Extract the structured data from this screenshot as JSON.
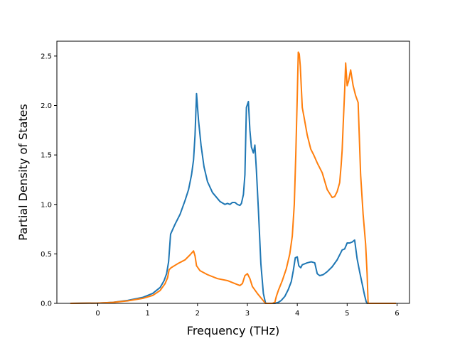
{
  "chart_data": {
    "type": "line",
    "title": "",
    "xlabel": "Frequency (THz)",
    "ylabel": "Partial Density of States",
    "xlim": [
      -0.82,
      6.25
    ],
    "ylim": [
      0,
      2.65
    ],
    "xticks": [
      0,
      1,
      2,
      3,
      4,
      5,
      6
    ],
    "yticks": [
      0.0,
      0.5,
      1.0,
      1.5,
      2.0,
      2.5
    ],
    "xtick_labels": [
      "0",
      "1",
      "2",
      "3",
      "4",
      "5",
      "6"
    ],
    "ytick_labels": [
      "0.0",
      "0.5",
      "1.0",
      "1.5",
      "2.0",
      "2.5"
    ],
    "grid": false,
    "legend": "none",
    "series": [
      {
        "color": "#1f77b4",
        "x": [
          -0.55,
          0.0,
          0.3,
          0.6,
          0.9,
          1.1,
          1.25,
          1.33,
          1.38,
          1.42,
          1.46,
          1.55,
          1.65,
          1.75,
          1.82,
          1.88,
          1.92,
          1.95,
          1.98,
          2.02,
          2.07,
          2.13,
          2.2,
          2.3,
          2.45,
          2.55,
          2.6,
          2.65,
          2.7,
          2.75,
          2.8,
          2.85,
          2.88,
          2.92,
          2.95,
          2.98,
          3.02,
          3.05,
          3.08,
          3.12,
          3.15,
          3.18,
          3.22,
          3.27,
          3.32,
          3.36,
          3.37,
          3.55,
          3.62,
          3.68,
          3.75,
          3.82,
          3.88,
          3.92,
          3.96,
          4.0,
          4.03,
          4.07,
          4.1,
          4.15,
          4.2,
          4.28,
          4.35,
          4.4,
          4.45,
          4.52,
          4.6,
          4.7,
          4.8,
          4.9,
          4.95,
          5.0,
          5.05,
          5.1,
          5.15,
          5.2,
          5.25,
          5.3,
          5.35,
          5.38,
          5.4,
          5.98
        ],
        "y": [
          0.0,
          0.003,
          0.01,
          0.03,
          0.06,
          0.1,
          0.16,
          0.23,
          0.3,
          0.42,
          0.7,
          0.8,
          0.9,
          1.04,
          1.15,
          1.3,
          1.45,
          1.7,
          2.12,
          1.85,
          1.6,
          1.38,
          1.23,
          1.12,
          1.03,
          1.0,
          1.01,
          1.0,
          1.02,
          1.02,
          1.0,
          0.99,
          1.01,
          1.1,
          1.3,
          1.98,
          2.04,
          1.75,
          1.58,
          1.52,
          1.6,
          1.35,
          0.95,
          0.4,
          0.1,
          0.01,
          0.0,
          0.0,
          0.01,
          0.03,
          0.07,
          0.14,
          0.22,
          0.33,
          0.46,
          0.47,
          0.38,
          0.36,
          0.39,
          0.4,
          0.41,
          0.42,
          0.41,
          0.3,
          0.28,
          0.29,
          0.32,
          0.37,
          0.44,
          0.54,
          0.55,
          0.61,
          0.61,
          0.62,
          0.64,
          0.45,
          0.32,
          0.2,
          0.08,
          0.02,
          0.0,
          0.0
        ]
      },
      {
        "color": "#ff7f0e",
        "x": [
          -0.55,
          0.0,
          0.3,
          0.6,
          0.9,
          1.1,
          1.25,
          1.35,
          1.4,
          1.43,
          1.47,
          1.6,
          1.75,
          1.85,
          1.92,
          1.95,
          1.98,
          2.05,
          2.2,
          2.4,
          2.6,
          2.75,
          2.85,
          2.9,
          2.95,
          3.0,
          3.05,
          3.1,
          3.2,
          3.28,
          3.33,
          3.36,
          3.4,
          3.5,
          3.55,
          3.58,
          3.62,
          3.7,
          3.78,
          3.85,
          3.9,
          3.94,
          3.97,
          4.0,
          4.02,
          4.04,
          4.06,
          4.1,
          4.14,
          4.2,
          4.27,
          4.33,
          4.4,
          4.5,
          4.6,
          4.7,
          4.75,
          4.8,
          4.85,
          4.88,
          4.9,
          4.92,
          4.95,
          4.97,
          5.0,
          5.03,
          5.07,
          5.12,
          5.17,
          5.22,
          5.27,
          5.32,
          5.37,
          5.4,
          5.42,
          5.98
        ],
        "y": [
          0.0,
          0.003,
          0.01,
          0.025,
          0.05,
          0.08,
          0.13,
          0.2,
          0.26,
          0.34,
          0.36,
          0.4,
          0.44,
          0.49,
          0.53,
          0.48,
          0.38,
          0.33,
          0.29,
          0.25,
          0.23,
          0.2,
          0.18,
          0.2,
          0.28,
          0.3,
          0.25,
          0.17,
          0.1,
          0.05,
          0.02,
          0.0,
          0.0,
          0.0,
          0.01,
          0.07,
          0.13,
          0.23,
          0.35,
          0.5,
          0.68,
          1.0,
          1.5,
          2.1,
          2.54,
          2.52,
          2.4,
          1.98,
          1.87,
          1.7,
          1.56,
          1.5,
          1.42,
          1.32,
          1.15,
          1.07,
          1.08,
          1.13,
          1.22,
          1.4,
          1.55,
          1.8,
          2.15,
          2.43,
          2.2,
          2.25,
          2.36,
          2.2,
          2.1,
          2.03,
          1.3,
          0.9,
          0.6,
          0.3,
          0.0,
          0.0
        ]
      }
    ]
  }
}
